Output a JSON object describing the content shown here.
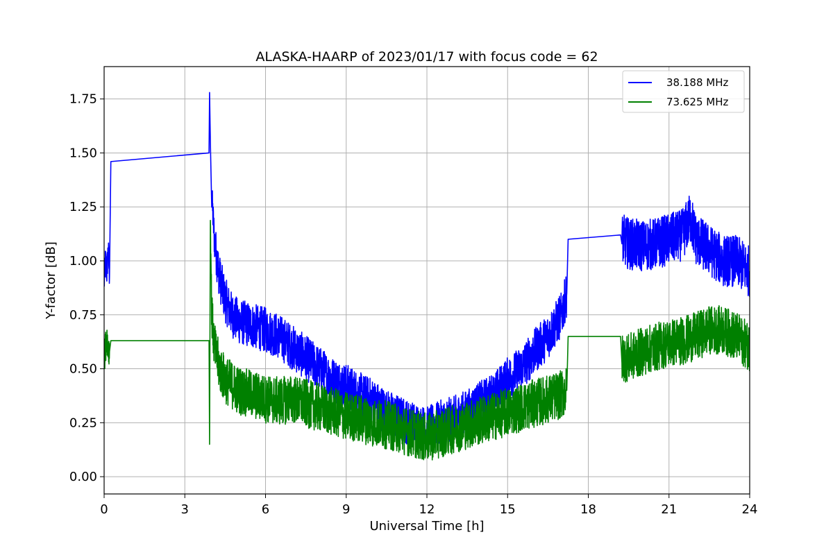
{
  "chart_data": {
    "type": "line",
    "title": "ALASKA-HAARP of 2023/01/17 with focus code = 62",
    "xlabel": "Universal Time [h]",
    "ylabel": "Y-factor [dB]",
    "xlim": [
      0,
      24
    ],
    "ylim": [
      -0.08,
      1.9
    ],
    "xticks": [
      0,
      3,
      6,
      9,
      12,
      15,
      18,
      21,
      24
    ],
    "xtick_labels": [
      "0",
      "3",
      "6",
      "9",
      "12",
      "15",
      "18",
      "21",
      "24"
    ],
    "yticks": [
      0.0,
      0.25,
      0.5,
      0.75,
      1.0,
      1.25,
      1.5,
      1.75
    ],
    "ytick_labels": [
      "0.00",
      "0.25",
      "0.50",
      "0.75",
      "1.00",
      "1.25",
      "1.50",
      "1.75"
    ],
    "grid": true,
    "legend_position": "top-right",
    "series": [
      {
        "name": "38.188 MHz",
        "color": "#0000ff",
        "x": [
          0.0,
          0.05,
          0.1,
          0.15,
          0.2,
          0.25,
          3.9,
          3.92,
          3.95,
          4.0,
          4.1,
          4.2,
          4.3,
          4.5,
          4.75,
          5.0,
          5.5,
          6.0,
          6.5,
          7.0,
          7.5,
          8.0,
          8.5,
          9.0,
          9.5,
          10.0,
          10.5,
          11.0,
          11.5,
          12.0,
          12.5,
          13.0,
          13.5,
          14.0,
          14.5,
          15.0,
          15.5,
          16.0,
          16.5,
          17.0,
          17.2,
          17.25,
          19.2,
          19.25,
          19.5,
          20.0,
          20.5,
          21.0,
          21.5,
          21.8,
          22.0,
          22.5,
          23.0,
          23.5,
          24.0
        ],
        "values": [
          0.9,
          1.0,
          0.95,
          1.05,
          0.93,
          1.46,
          1.5,
          1.78,
          1.55,
          1.3,
          1.1,
          1.0,
          0.92,
          0.82,
          0.75,
          0.72,
          0.7,
          0.68,
          0.65,
          0.6,
          0.55,
          0.5,
          0.45,
          0.42,
          0.38,
          0.35,
          0.3,
          0.27,
          0.24,
          0.22,
          0.25,
          0.27,
          0.3,
          0.34,
          0.38,
          0.45,
          0.5,
          0.58,
          0.65,
          0.75,
          0.85,
          1.1,
          1.12,
          1.1,
          1.08,
          1.07,
          1.08,
          1.1,
          1.12,
          1.2,
          1.1,
          1.05,
          1.0,
          1.0,
          0.95
        ],
        "noise_amplitude": [
          0.1,
          0.1,
          0.1,
          0.1,
          0.1,
          0.0,
          0.0,
          0.0,
          0.0,
          0.1,
          0.12,
          0.14,
          0.14,
          0.14,
          0.14,
          0.14,
          0.14,
          0.14,
          0.14,
          0.14,
          0.14,
          0.14,
          0.14,
          0.14,
          0.14,
          0.14,
          0.14,
          0.14,
          0.14,
          0.14,
          0.14,
          0.14,
          0.14,
          0.14,
          0.14,
          0.14,
          0.14,
          0.14,
          0.14,
          0.14,
          0.14,
          0.0,
          0.0,
          0.16,
          0.16,
          0.16,
          0.16,
          0.16,
          0.16,
          0.16,
          0.16,
          0.16,
          0.16,
          0.16,
          0.16
        ]
      },
      {
        "name": "73.625 MHz",
        "color": "#008000",
        "x": [
          0.0,
          0.05,
          0.1,
          0.15,
          0.2,
          0.25,
          3.9,
          3.92,
          3.95,
          4.0,
          4.1,
          4.3,
          4.5,
          5.0,
          5.5,
          6.0,
          6.5,
          7.0,
          7.5,
          8.0,
          8.5,
          9.0,
          9.5,
          10.0,
          10.5,
          11.0,
          11.5,
          12.0,
          12.5,
          13.0,
          13.5,
          14.0,
          14.5,
          15.0,
          15.5,
          16.0,
          16.5,
          17.0,
          17.2,
          17.25,
          19.2,
          19.25,
          19.5,
          20.0,
          20.5,
          21.0,
          21.5,
          22.0,
          22.5,
          23.0,
          23.5,
          24.0
        ],
        "values": [
          0.55,
          0.6,
          0.65,
          0.6,
          0.58,
          0.63,
          0.63,
          0.15,
          1.2,
          0.75,
          0.6,
          0.5,
          0.45,
          0.4,
          0.38,
          0.36,
          0.35,
          0.36,
          0.34,
          0.32,
          0.3,
          0.28,
          0.27,
          0.25,
          0.24,
          0.22,
          0.2,
          0.18,
          0.2,
          0.22,
          0.24,
          0.26,
          0.28,
          0.3,
          0.32,
          0.34,
          0.36,
          0.38,
          0.4,
          0.65,
          0.65,
          0.55,
          0.55,
          0.58,
          0.6,
          0.62,
          0.63,
          0.65,
          0.68,
          0.68,
          0.65,
          0.6
        ],
        "noise_amplitude": [
          0.1,
          0.1,
          0.1,
          0.1,
          0.1,
          0.0,
          0.0,
          0.0,
          0.1,
          0.15,
          0.15,
          0.15,
          0.15,
          0.15,
          0.15,
          0.15,
          0.15,
          0.15,
          0.15,
          0.15,
          0.15,
          0.15,
          0.15,
          0.15,
          0.15,
          0.15,
          0.15,
          0.15,
          0.15,
          0.15,
          0.15,
          0.15,
          0.15,
          0.15,
          0.15,
          0.15,
          0.15,
          0.15,
          0.15,
          0.0,
          0.0,
          0.15,
          0.15,
          0.15,
          0.15,
          0.15,
          0.15,
          0.15,
          0.15,
          0.15,
          0.15,
          0.15
        ]
      }
    ]
  }
}
